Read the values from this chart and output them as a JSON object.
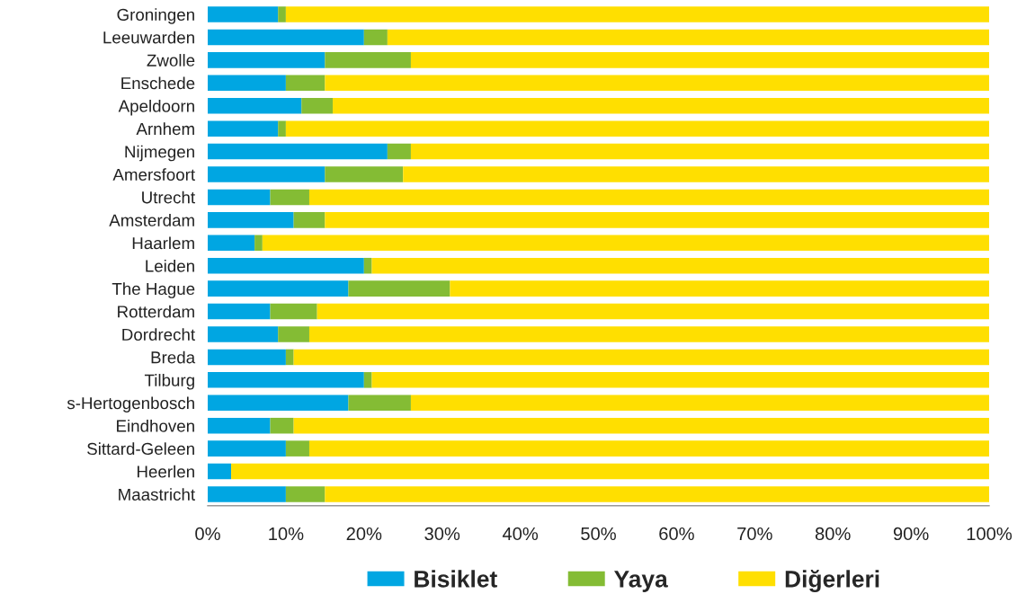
{
  "chart_data": {
    "type": "bar",
    "orientation": "horizontal",
    "stacked": true,
    "categories": [
      "Groningen",
      "Leeuwarden",
      "Zwolle",
      "Enschede",
      "Apeldoorn",
      "Arnhem",
      "Nijmegen",
      "Amersfoort",
      "Utrecht",
      "Amsterdam",
      "Haarlem",
      "Leiden",
      "The Hague",
      "Rotterdam",
      "Dordrecht",
      "Breda",
      "Tilburg",
      "s-Hertogenbosch",
      "Eindhoven",
      "Sittard-Geleen",
      "Heerlen",
      "Maastricht"
    ],
    "series": [
      {
        "name": "Bisiklet",
        "color": "#00a6e2",
        "values": [
          9,
          20,
          15,
          10,
          12,
          9,
          23,
          15,
          8,
          11,
          6,
          20,
          18,
          8,
          9,
          10,
          20,
          18,
          8,
          10,
          3,
          10
        ]
      },
      {
        "name": "Yaya",
        "color": "#84bc34",
        "values": [
          1,
          3,
          11,
          5,
          4,
          1,
          3,
          10,
          5,
          4,
          1,
          1,
          13,
          6,
          4,
          1,
          1,
          8,
          3,
          3,
          0,
          5
        ]
      },
      {
        "name": "Diğerleri",
        "color": "#ffdf00",
        "values": [
          90,
          77,
          74,
          85,
          84,
          90,
          74,
          75,
          87,
          85,
          93,
          79,
          69,
          86,
          87,
          89,
          79,
          74,
          89,
          87,
          97,
          85
        ]
      }
    ],
    "xlim": [
      0,
      100
    ],
    "xticks": [
      {
        "value": 0,
        "label": "0%"
      },
      {
        "value": 10,
        "label": "10%"
      },
      {
        "value": 20,
        "label": "20%"
      },
      {
        "value": 30,
        "label": "30%"
      },
      {
        "value": 40,
        "label": "40%"
      },
      {
        "value": 50,
        "label": "50%"
      },
      {
        "value": 60,
        "label": "60%"
      },
      {
        "value": 70,
        "label": "70%"
      },
      {
        "value": 80,
        "label": "80%"
      },
      {
        "value": 90,
        "label": "90%"
      },
      {
        "value": 100,
        "label": "100%"
      }
    ],
    "legend": "bottom",
    "grid": false
  }
}
